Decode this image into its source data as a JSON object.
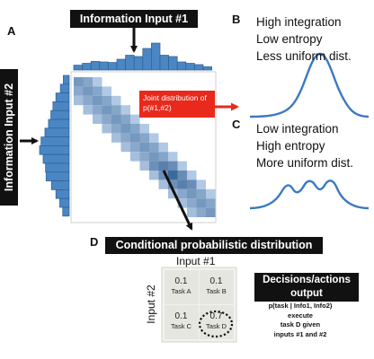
{
  "panels": {
    "a": "A",
    "b": "B",
    "c": "C",
    "d": "D"
  },
  "labels": {
    "input1_title": "Information Input #1",
    "input2_title": "Information Input #2",
    "joint": "Joint distribution of p(#1,#2)",
    "conditional_title": "Conditional probabilistic distribution",
    "table_col_title": "Input #1",
    "table_row_title": "Input #2",
    "decisions_line1": "Decisions/actions",
    "decisions_line2": "output"
  },
  "panel_b_text": [
    "High integration",
    "Low entropy",
    "Less uniform dist."
  ],
  "panel_c_text": [
    "Low integration",
    "High entropy",
    "More uniform dist."
  ],
  "decision_text": [
    "p(task | Info1, Info2)",
    "execute",
    "task D given",
    "inputs #1 and #2"
  ],
  "table": {
    "cells": [
      {
        "value": "0.1",
        "task": "Task A"
      },
      {
        "value": "0.1",
        "task": "Task B"
      },
      {
        "value": "0.1",
        "task": "Task C"
      },
      {
        "value": "0.7",
        "task": "Task D"
      }
    ]
  },
  "colors": {
    "histogram": "#4a86c4",
    "heatmap_low": "#cfe2f8",
    "heatmap_high": "#3e6a9b",
    "curve": "#3b79c3",
    "red_arrow": "#e8291c"
  },
  "histogram_top": [
    0.18,
    0.25,
    0.32,
    0.3,
    0.28,
    0.4,
    0.55,
    0.5,
    0.8,
    1.0,
    0.55,
    0.5,
    0.3,
    0.25,
    0.2,
    0.12
  ],
  "histogram_left": [
    0.2,
    0.3,
    0.45,
    0.55,
    0.62,
    0.7,
    0.82,
    0.95,
    1.0,
    0.88,
    0.8,
    0.78,
    0.6,
    0.45,
    0.32,
    0.22
  ]
}
